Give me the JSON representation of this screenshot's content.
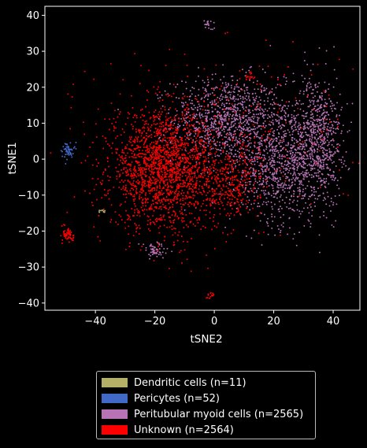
{
  "chart_data": {
    "type": "scatter",
    "title": "",
    "xlabel": "tSNE2",
    "ylabel": "tSNE1",
    "xlim": [
      -57,
      49
    ],
    "ylim": [
      -42,
      42.5
    ],
    "xticks": [
      -40,
      -20,
      0,
      20,
      40
    ],
    "yticks": [
      -40,
      -30,
      -20,
      -10,
      0,
      10,
      20,
      30,
      40
    ],
    "grid": false,
    "legend_position": "bottom-outside",
    "series": [
      {
        "name": "Dendritic cells (n=11)",
        "color": "#b5b068",
        "clusters": [
          {
            "cx": -38,
            "cy": -14.6,
            "sx": 0.6,
            "sy": 0.3,
            "n": 11
          }
        ]
      },
      {
        "name": "Pericytes (n=52)",
        "color": "#4169c8",
        "clusters": [
          {
            "cx": -49.3,
            "cy": 2.6,
            "sx": 1.0,
            "sy": 1.1,
            "n": 52
          }
        ]
      },
      {
        "name": "Peritubular myoid cells (n=2565)",
        "color": "#b873b5",
        "clusters": [
          {
            "cx": 4,
            "cy": 11,
            "sx": 9,
            "sy": 6,
            "n": 950
          },
          {
            "cx": 23,
            "cy": 0,
            "sx": 6,
            "sy": 9,
            "n": 700
          },
          {
            "cx": 35,
            "cy": 5,
            "sx": 4,
            "sy": 9,
            "n": 700
          },
          {
            "cx": -20,
            "cy": -25.5,
            "sx": 2.5,
            "sy": 1.2,
            "n": 60
          },
          {
            "cx": -2,
            "cy": 37.5,
            "sx": 0.8,
            "sy": 0.8,
            "n": 20
          },
          {
            "cx": 15,
            "cy": -5,
            "sx": 7,
            "sy": 5,
            "n": 135
          }
        ]
      },
      {
        "name": "Unknown (n=2564)",
        "color": "#ff0000",
        "clusters": [
          {
            "cx": -17,
            "cy": -3,
            "sx": 9,
            "sy": 8,
            "n": 1900
          },
          {
            "cx": 5,
            "cy": -7,
            "sx": 5,
            "sy": 5,
            "n": 300
          },
          {
            "cx": -49,
            "cy": -21,
            "sx": 0.9,
            "sy": 1.2,
            "n": 60
          },
          {
            "cx": -1,
            "cy": -37.5,
            "sx": 0.8,
            "sy": 0.6,
            "n": 15
          },
          {
            "cx": 12,
            "cy": 23,
            "sx": 1.0,
            "sy": 0.8,
            "n": 15
          },
          {
            "cx": 5,
            "cy": 8,
            "sx": 22,
            "sy": 12,
            "n": 274
          }
        ]
      }
    ]
  }
}
